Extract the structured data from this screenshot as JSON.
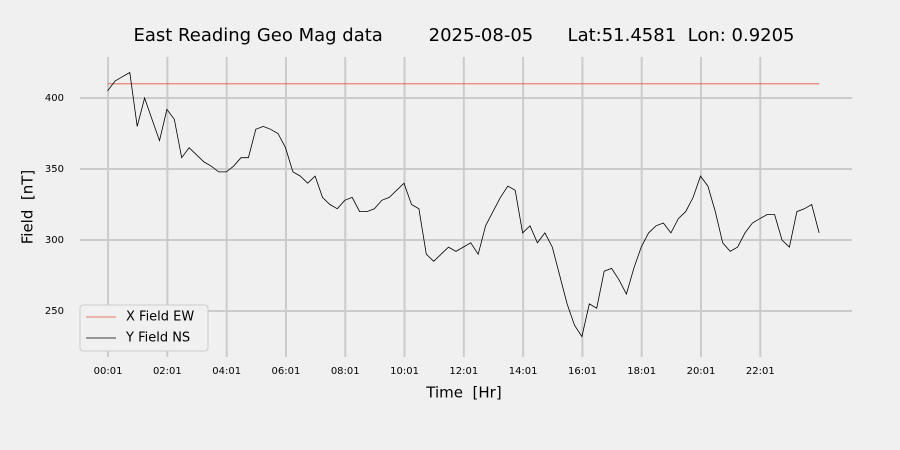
{
  "chart_data": {
    "type": "line",
    "title": "East Reading Geo Mag data        2025-08-05      Lat:51.4581  Lon: 0.9205",
    "x_label": "Time  [Hr]",
    "y_label": "Field  [nT]",
    "x": [
      0,
      0.25,
      0.5,
      0.75,
      1,
      1.25,
      1.5,
      1.75,
      2,
      2.25,
      2.5,
      2.75,
      3,
      3.25,
      3.5,
      3.75,
      4,
      4.25,
      4.5,
      4.75,
      5,
      5.25,
      5.5,
      5.75,
      6,
      6.25,
      6.5,
      6.75,
      7,
      7.25,
      7.5,
      7.75,
      8,
      8.25,
      8.5,
      8.75,
      9,
      9.25,
      9.5,
      9.75,
      10,
      10.25,
      10.5,
      10.75,
      11,
      11.25,
      11.5,
      11.75,
      12,
      12.25,
      12.5,
      12.75,
      13,
      13.25,
      13.5,
      13.75,
      14,
      14.25,
      14.5,
      14.75,
      15,
      15.25,
      15.5,
      15.75,
      16,
      16.25,
      16.5,
      16.75,
      17,
      17.25,
      17.5,
      17.75,
      18,
      18.25,
      18.5,
      18.75,
      19,
      19.25,
      19.5,
      19.75,
      20,
      20.25,
      20.5,
      20.75,
      21,
      21.25,
      21.5,
      21.75,
      22,
      22.25,
      22.5,
      22.75,
      23,
      23.25,
      23.5,
      23.75,
      24
    ],
    "series": [
      {
        "name": "X Field EW",
        "color": "#e5533d",
        "values": [
          410,
          410,
          410,
          410,
          410,
          410,
          410,
          410,
          410,
          410,
          410,
          410,
          410,
          410,
          410,
          410,
          410,
          410,
          410,
          410,
          410,
          410,
          410,
          410,
          410,
          410,
          410,
          410,
          410,
          410,
          410,
          410,
          410,
          410,
          410,
          410,
          410,
          410,
          410,
          410,
          410,
          410,
          410,
          410,
          410,
          410,
          410,
          410,
          410,
          410,
          410,
          410,
          410,
          410,
          410,
          410,
          410,
          410,
          410,
          410,
          410,
          410,
          410,
          410,
          410,
          410,
          410,
          410,
          410,
          410,
          410,
          410,
          410,
          410,
          410,
          410,
          410,
          410,
          410,
          410,
          410,
          410,
          410,
          410,
          410,
          410,
          410,
          410,
          410,
          410,
          410,
          410,
          410,
          410,
          410,
          410,
          410
        ]
      },
      {
        "name": "Y Field NS",
        "color": "#000000",
        "values": [
          405,
          412,
          415,
          418,
          380,
          400,
          385,
          370,
          392,
          385,
          358,
          365,
          360,
          355,
          352,
          348,
          348,
          352,
          358,
          358,
          378,
          380,
          378,
          375,
          365,
          348,
          345,
          340,
          345,
          330,
          325,
          322,
          328,
          330,
          320,
          320,
          322,
          328,
          330,
          335,
          340,
          325,
          322,
          290,
          285,
          290,
          295,
          292,
          295,
          298,
          290,
          310,
          320,
          330,
          338,
          335,
          305,
          310,
          298,
          305,
          295,
          275,
          255,
          240,
          232,
          255,
          252,
          278,
          280,
          272,
          262,
          280,
          295,
          305,
          310,
          312,
          305,
          315,
          320,
          330,
          345,
          338,
          320,
          298,
          292,
          295,
          305,
          312,
          315,
          318,
          318,
          300,
          295,
          320,
          322,
          325,
          305
        ]
      }
    ],
    "xlim": [
      -0.93,
      25.11
    ],
    "ylim": [
      217.6,
      428.9
    ],
    "xticks": [
      {
        "value": 0.0167,
        "label": "00:01"
      },
      {
        "value": 2.0167,
        "label": "02:01"
      },
      {
        "value": 4.0167,
        "label": "04:01"
      },
      {
        "value": 6.0167,
        "label": "06:01"
      },
      {
        "value": 8.0167,
        "label": "08:01"
      },
      {
        "value": 10.0167,
        "label": "10:01"
      },
      {
        "value": 12.0167,
        "label": "12:01"
      },
      {
        "value": 14.0167,
        "label": "14:01"
      },
      {
        "value": 16.0167,
        "label": "16:01"
      },
      {
        "value": 18.0167,
        "label": "18:01"
      },
      {
        "value": 20.0167,
        "label": "20:01"
      },
      {
        "value": 22.0167,
        "label": "22:01"
      }
    ],
    "yticks": [
      250,
      300,
      350,
      400
    ],
    "grid": true,
    "legend": "lower left"
  }
}
